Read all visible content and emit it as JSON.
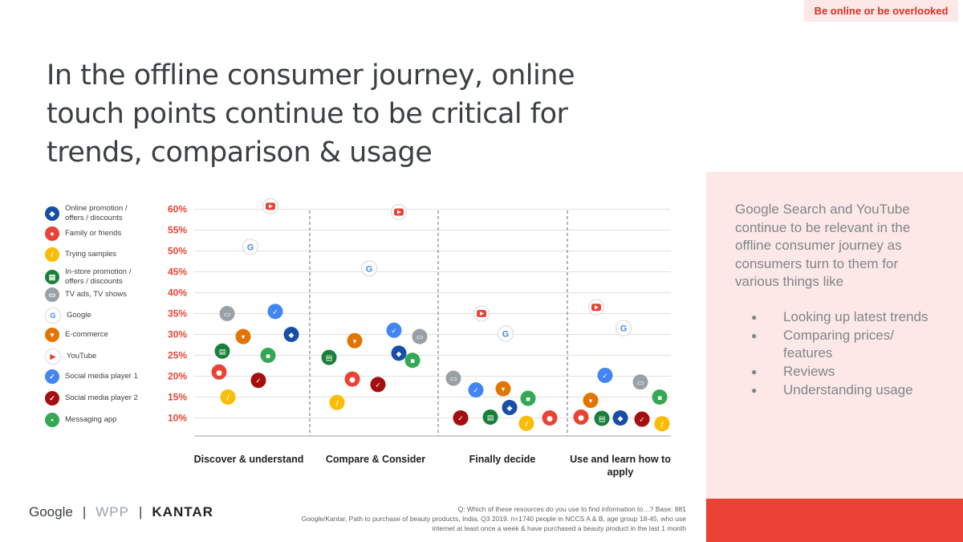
{
  "header": {
    "tag": "Be online or be overlooked"
  },
  "headline": "In the offline consumer journey, online touch points continue to be critical for trends, comparison & usage",
  "side_panel": {
    "intro": "Google Search and YouTube continue to be relevant in the offline consumer journey as consumers turn to them for various things like",
    "bullets": [
      "Looking up latest trends",
      "Comparing prices/ features",
      "Reviews",
      "Understanding usage"
    ]
  },
  "legend": [
    {
      "label": "Online promotion / offers / discounts",
      "color": "#174ea6",
      "icon": "tag-icon",
      "glyph": "◆"
    },
    {
      "label": "Family or friends",
      "color": "#ea4335",
      "icon": "person-icon",
      "glyph": "●"
    },
    {
      "label": "Trying samples",
      "color": "#fbbc04",
      "icon": "pencil-icon",
      "glyph": "/"
    },
    {
      "label": "In-store promotion / offers / discounts",
      "color": "#188038",
      "icon": "store-icon",
      "glyph": "▤"
    },
    {
      "label": "TV ads, TV shows",
      "color": "#9aa0a6",
      "icon": "tv-icon",
      "glyph": "▭"
    },
    {
      "label": "Google",
      "color": "#ffffff",
      "icon": "google-icon",
      "glyph": "G"
    },
    {
      "label": "E-commerce",
      "color": "#e37400",
      "icon": "cart-icon",
      "glyph": "▾"
    },
    {
      "label": "YouTube",
      "color": "#ffffff",
      "icon": "youtube-icon",
      "glyph": "▶"
    },
    {
      "label": "Social media player 1",
      "color": "#4285f4",
      "icon": "thumbs-up-icon",
      "glyph": "✓"
    },
    {
      "label": "Social media player 2",
      "color": "#a50e0e",
      "icon": "thumbs-up-icon",
      "glyph": "✓"
    },
    {
      "label": "Messaging app",
      "color": "#34a853",
      "icon": "chat-icon",
      "glyph": "▪"
    }
  ],
  "chart_data": {
    "type": "scatter",
    "title": "",
    "categories": [
      "Discover & understand",
      "Compare & Consider",
      "Finally decide",
      "Use and learn how to apply"
    ],
    "ylim": [
      10,
      60
    ],
    "yticks": [
      "10%",
      "15%",
      "20%",
      "25%",
      "30%",
      "35%",
      "40%",
      "45%",
      "50%",
      "55%",
      "60%"
    ],
    "series": [
      {
        "name": "Online promotion / offers / discounts",
        "values": [
          30,
          25.5,
          12.5,
          10
        ]
      },
      {
        "name": "Family or friends",
        "values": [
          21,
          19.3,
          10,
          10.2
        ]
      },
      {
        "name": "Trying samples",
        "values": [
          15,
          13.7,
          8.7,
          8.6
        ]
      },
      {
        "name": "In-store promotion / offers / discounts",
        "values": [
          26,
          24.5,
          10.2,
          9.9
        ]
      },
      {
        "name": "TV ads, TV shows",
        "values": [
          35,
          29.5,
          19.5,
          18.6
        ]
      },
      {
        "name": "Google",
        "values": [
          51,
          45.8,
          30.2,
          31.5
        ]
      },
      {
        "name": "E-commerce",
        "values": [
          29.5,
          28.5,
          17,
          14.2
        ]
      },
      {
        "name": "YouTube",
        "values": [
          60.7,
          59.3,
          35,
          36.5
        ]
      },
      {
        "name": "Social media player 1",
        "values": [
          35.5,
          31,
          16.7,
          20.2
        ]
      },
      {
        "name": "Social media player 2",
        "values": [
          19,
          18,
          10,
          9.7
        ]
      },
      {
        "name": "Messaging app",
        "values": [
          25,
          23.8,
          14.7,
          15
        ]
      }
    ]
  },
  "footer": {
    "logos": [
      "Google",
      "WPP",
      "KANTAR"
    ],
    "source_lines": [
      "Q: Which of these resources do you use to find information to…?   Base: 881",
      "Google/Kantar, Path to purchase of beauty products, India, Q3 2019. n=1740 people in NCCS A & B, age group 18-45, who use",
      "internet at least once a week & have purchased a beauty product in the last 1 month"
    ]
  }
}
